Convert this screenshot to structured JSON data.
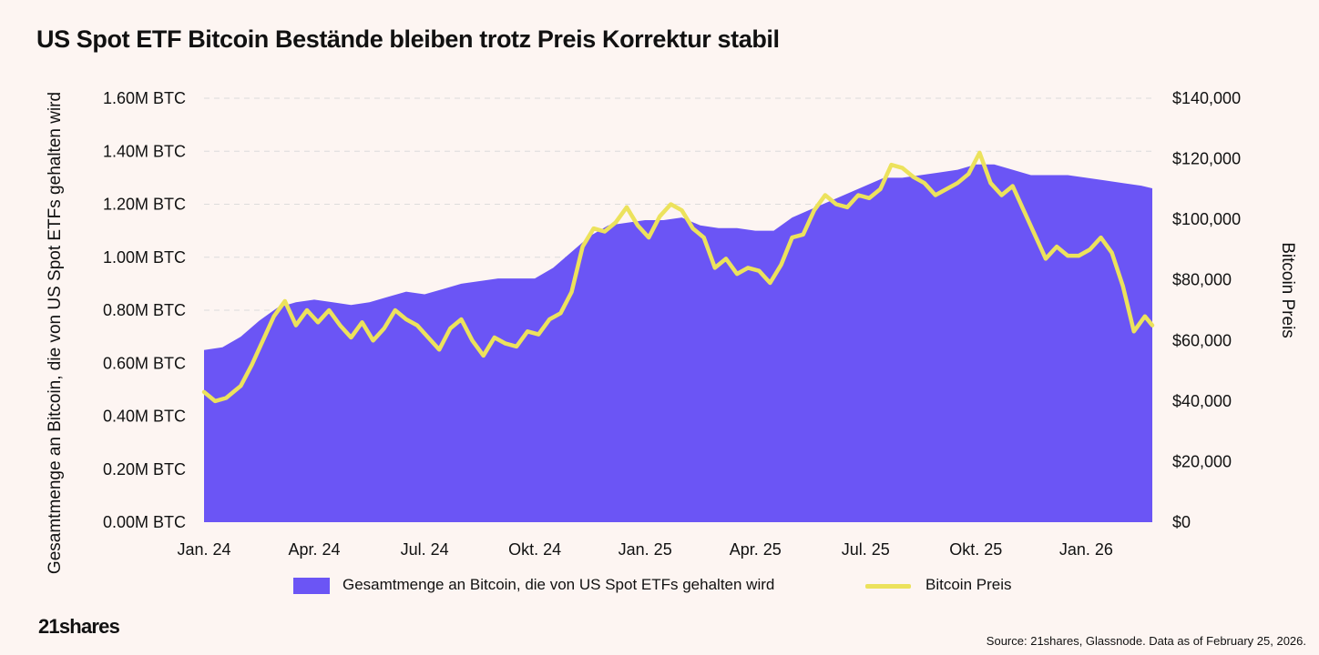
{
  "title": "US Spot ETF Bitcoin Bestände bleiben trotz Preis Korrektur stabil",
  "logo": "21shares",
  "source": "Source: 21shares, Glassnode. Data as of February 25, 2026.",
  "colors": {
    "background": "#fdf5f2",
    "holdings_area": "#6b55f5",
    "price_line": "#ece25c",
    "grid": "#dcdcdc"
  },
  "chart_data": {
    "type": "area",
    "title": "US Spot ETF Bitcoin Bestände bleiben trotz Preis Korrektur stabil",
    "x_tick_labels": [
      "Jan. 24",
      "Apr. 24",
      "Jul. 24",
      "Okt. 24",
      "Jan. 25",
      "Apr. 25",
      "Jul. 25",
      "Okt. 25",
      "Jan. 26"
    ],
    "y_left": {
      "label": "Gesamtmenge an Bitcoin, die von US Spot ETFs gehalten wird",
      "tick_labels": [
        "0.00M BTC",
        "0.20M BTC",
        "0.40M BTC",
        "0.60M BTC",
        "0.80M BTC",
        "1.00M BTC",
        "1.20M BTC",
        "1.40M BTC",
        "1.60M BTC"
      ],
      "ylim": [
        0,
        1.6
      ]
    },
    "y_right": {
      "label": "Bitcoin Preis",
      "tick_labels": [
        "$0",
        "$20,000",
        "$40,000",
        "$60,000",
        "$80,000",
        "$100,000",
        "$120,000",
        "$140,000"
      ],
      "ylim": [
        0,
        140000
      ]
    },
    "xlim_months": [
      0,
      25.8
    ],
    "grid": true,
    "legend_position": "bottom",
    "series": [
      {
        "name": "Gesamtmenge an Bitcoin, die von US Spot ETFs gehalten wird",
        "type": "area",
        "axis": "left",
        "unit": "M BTC",
        "points": [
          [
            0,
            0.65
          ],
          [
            0.5,
            0.66
          ],
          [
            1,
            0.7
          ],
          [
            1.5,
            0.76
          ],
          [
            2,
            0.81
          ],
          [
            2.5,
            0.83
          ],
          [
            3,
            0.84
          ],
          [
            3.5,
            0.83
          ],
          [
            4,
            0.82
          ],
          [
            4.5,
            0.83
          ],
          [
            5,
            0.85
          ],
          [
            5.5,
            0.87
          ],
          [
            6,
            0.86
          ],
          [
            6.5,
            0.88
          ],
          [
            7,
            0.9
          ],
          [
            7.5,
            0.91
          ],
          [
            8,
            0.92
          ],
          [
            8.5,
            0.92
          ],
          [
            9,
            0.92
          ],
          [
            9.5,
            0.96
          ],
          [
            10,
            1.02
          ],
          [
            10.5,
            1.08
          ],
          [
            11,
            1.12
          ],
          [
            11.5,
            1.13
          ],
          [
            12,
            1.14
          ],
          [
            12.5,
            1.14
          ],
          [
            13,
            1.15
          ],
          [
            13.5,
            1.12
          ],
          [
            14,
            1.11
          ],
          [
            14.5,
            1.11
          ],
          [
            15,
            1.1
          ],
          [
            15.5,
            1.1
          ],
          [
            16,
            1.15
          ],
          [
            16.5,
            1.18
          ],
          [
            17,
            1.21
          ],
          [
            17.5,
            1.24
          ],
          [
            18,
            1.27
          ],
          [
            18.5,
            1.3
          ],
          [
            19,
            1.3
          ],
          [
            19.5,
            1.31
          ],
          [
            20,
            1.32
          ],
          [
            20.5,
            1.33
          ],
          [
            21,
            1.35
          ],
          [
            21.5,
            1.35
          ],
          [
            22,
            1.33
          ],
          [
            22.5,
            1.31
          ],
          [
            23,
            1.31
          ],
          [
            23.5,
            1.31
          ],
          [
            24,
            1.3
          ],
          [
            24.5,
            1.29
          ],
          [
            25,
            1.28
          ],
          [
            25.5,
            1.27
          ],
          [
            25.8,
            1.26
          ]
        ]
      },
      {
        "name": "Bitcoin Preis",
        "type": "line",
        "axis": "right",
        "unit": "USD",
        "points": [
          [
            0,
            43000
          ],
          [
            0.3,
            40000
          ],
          [
            0.6,
            41000
          ],
          [
            1,
            45000
          ],
          [
            1.3,
            52000
          ],
          [
            1.6,
            60000
          ],
          [
            1.9,
            68000
          ],
          [
            2.2,
            73000
          ],
          [
            2.5,
            65000
          ],
          [
            2.8,
            70000
          ],
          [
            3.1,
            66000
          ],
          [
            3.4,
            70000
          ],
          [
            3.7,
            65000
          ],
          [
            4,
            61000
          ],
          [
            4.3,
            66000
          ],
          [
            4.6,
            60000
          ],
          [
            4.9,
            64000
          ],
          [
            5.2,
            70000
          ],
          [
            5.5,
            67000
          ],
          [
            5.8,
            65000
          ],
          [
            6.1,
            61000
          ],
          [
            6.4,
            57000
          ],
          [
            6.7,
            64000
          ],
          [
            7,
            67000
          ],
          [
            7.3,
            60000
          ],
          [
            7.6,
            55000
          ],
          [
            7.9,
            61000
          ],
          [
            8.2,
            59000
          ],
          [
            8.5,
            58000
          ],
          [
            8.8,
            63000
          ],
          [
            9.1,
            62000
          ],
          [
            9.4,
            67000
          ],
          [
            9.7,
            69000
          ],
          [
            10,
            76000
          ],
          [
            10.3,
            91000
          ],
          [
            10.6,
            97000
          ],
          [
            10.9,
            96000
          ],
          [
            11.2,
            99000
          ],
          [
            11.5,
            104000
          ],
          [
            11.8,
            98000
          ],
          [
            12.1,
            94000
          ],
          [
            12.4,
            101000
          ],
          [
            12.7,
            105000
          ],
          [
            13,
            103000
          ],
          [
            13.3,
            97000
          ],
          [
            13.6,
            94000
          ],
          [
            13.9,
            84000
          ],
          [
            14.2,
            87000
          ],
          [
            14.5,
            82000
          ],
          [
            14.8,
            84000
          ],
          [
            15.1,
            83000
          ],
          [
            15.4,
            79000
          ],
          [
            15.7,
            85000
          ],
          [
            16,
            94000
          ],
          [
            16.3,
            95000
          ],
          [
            16.6,
            103000
          ],
          [
            16.9,
            108000
          ],
          [
            17.2,
            105000
          ],
          [
            17.5,
            104000
          ],
          [
            17.8,
            108000
          ],
          [
            18.1,
            107000
          ],
          [
            18.4,
            110000
          ],
          [
            18.7,
            118000
          ],
          [
            19,
            117000
          ],
          [
            19.3,
            114000
          ],
          [
            19.6,
            112000
          ],
          [
            19.9,
            108000
          ],
          [
            20.2,
            110000
          ],
          [
            20.5,
            112000
          ],
          [
            20.8,
            115000
          ],
          [
            21.1,
            122000
          ],
          [
            21.4,
            112000
          ],
          [
            21.7,
            108000
          ],
          [
            22,
            111000
          ],
          [
            22.3,
            103000
          ],
          [
            22.6,
            95000
          ],
          [
            22.9,
            87000
          ],
          [
            23.2,
            91000
          ],
          [
            23.5,
            88000
          ],
          [
            23.8,
            88000
          ],
          [
            24.1,
            90000
          ],
          [
            24.4,
            94000
          ],
          [
            24.7,
            89000
          ],
          [
            25,
            78000
          ],
          [
            25.3,
            63000
          ],
          [
            25.6,
            68000
          ],
          [
            25.8,
            65000
          ]
        ]
      }
    ]
  }
}
